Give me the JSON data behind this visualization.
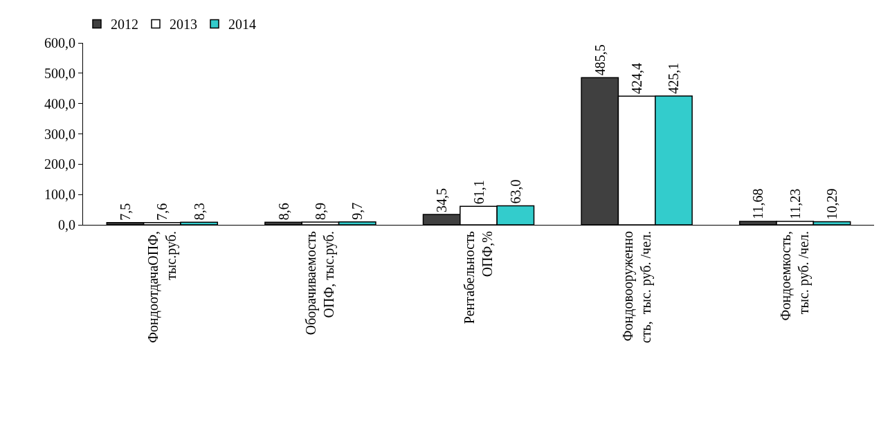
{
  "chart_data": {
    "type": "bar",
    "categories": [
      "ФондоотдачаОПФ,\nтыс.руб.",
      "Оборачиваемость\nОПФ, тыс.руб.",
      "Рентабельность\nОПФ,%",
      "Фондовооруженно\nсть,  тыс. руб. /чел.",
      "Фондоемкость,\nтыс. руб. /чел."
    ],
    "series": [
      {
        "name": "2012",
        "color": "#404040",
        "values": [
          7.5,
          8.6,
          34.5,
          485.5,
          11.68
        ],
        "value_labels": [
          "7,5",
          "8,6",
          "34,5",
          "485,5",
          "11,68"
        ]
      },
      {
        "name": "2013",
        "color": "#ffffff",
        "values": [
          7.6,
          8.9,
          61.1,
          424.4,
          11.23
        ],
        "value_labels": [
          "7,6",
          "8,9",
          "61,1",
          "424,4",
          "11,23"
        ]
      },
      {
        "name": "2014",
        "color": "#33cccc",
        "values": [
          8.3,
          9.7,
          63.0,
          425.1,
          10.29
        ],
        "value_labels": [
          "8,3",
          "9,7",
          "63,0",
          "425,1",
          "10,29"
        ]
      }
    ],
    "ylim": [
      0,
      600
    ],
    "yticks": [
      {
        "value": 0,
        "label": "0,0"
      },
      {
        "value": 100,
        "label": "100,0"
      },
      {
        "value": 200,
        "label": "200,0"
      },
      {
        "value": 300,
        "label": "300,0"
      },
      {
        "value": 400,
        "label": "400,0"
      },
      {
        "value": 500,
        "label": "500,0"
      },
      {
        "value": 600,
        "label": "600,0"
      }
    ],
    "legend": "top left"
  }
}
